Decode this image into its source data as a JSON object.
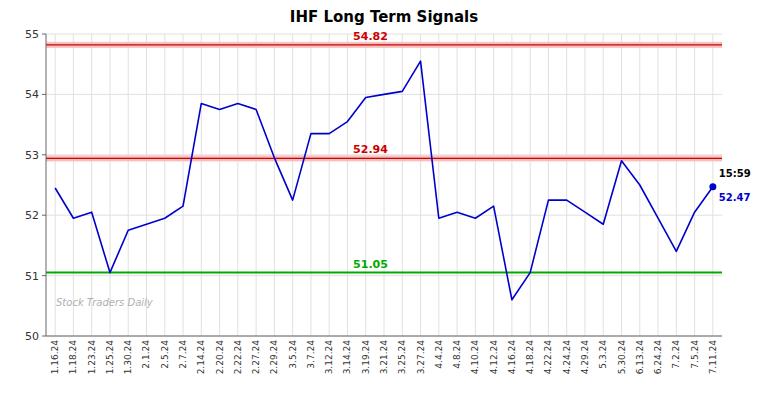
{
  "chart_data": {
    "type": "line",
    "title": "IHF Long Term Signals",
    "categories": [
      "1.16.24",
      "1.18.24",
      "1.23.24",
      "1.25.24",
      "1.30.24",
      "2.1.24",
      "2.5.24",
      "2.7.24",
      "2.14.24",
      "2.20.24",
      "2.22.24",
      "2.27.24",
      "2.29.24",
      "3.5.24",
      "3.7.24",
      "3.12.24",
      "3.14.24",
      "3.19.24",
      "3.21.24",
      "3.25.24",
      "3.27.24",
      "4.4.24",
      "4.8.24",
      "4.10.24",
      "4.12.24",
      "4.16.24",
      "4.18.24",
      "4.22.24",
      "4.24.24",
      "4.29.24",
      "5.3.24",
      "5.30.24",
      "6.13.24",
      "6.24.24",
      "7.2.24",
      "7.5.24",
      "7.11.24"
    ],
    "values": [
      52.45,
      51.95,
      52.05,
      51.05,
      51.75,
      51.85,
      51.95,
      52.15,
      53.85,
      53.75,
      53.85,
      53.75,
      52.95,
      52.25,
      53.35,
      53.35,
      53.55,
      53.95,
      54.0,
      54.05,
      54.55,
      51.95,
      52.05,
      51.95,
      52.15,
      50.6,
      51.05,
      52.25,
      52.25,
      52.05,
      51.85,
      52.9,
      52.5,
      51.95,
      51.4,
      52.05,
      52.47
    ],
    "color": "#0000cc",
    "hlines": [
      {
        "value": 54.82,
        "color": "#cc0000",
        "band_color": "#f5c0c0"
      },
      {
        "value": 52.94,
        "color": "#cc0000",
        "band_color": "#f5c0c0"
      },
      {
        "value": 51.05,
        "color": "#00aa00"
      }
    ],
    "last_point": {
      "time": "15:59",
      "value": 52.47
    },
    "watermark": "Stock Traders Daily",
    "ylim": [
      50,
      55
    ],
    "yticks": [
      50,
      51,
      52,
      53,
      54,
      55
    ],
    "grid": true
  }
}
